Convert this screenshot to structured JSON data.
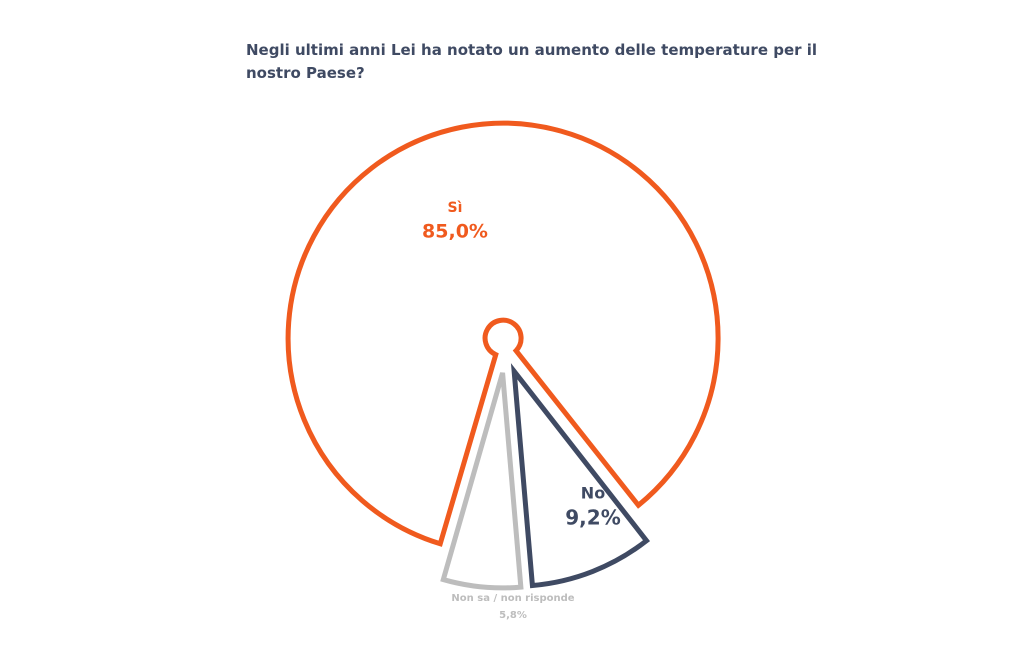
{
  "chart_data": {
    "type": "pie",
    "title": "Negli ultimi anni Lei ha notato un aumento delle temperature per il nostro Paese?",
    "categories": [
      "Sì",
      "No",
      "Non sa / non risponde"
    ],
    "values": [
      85.0,
      9.2,
      5.8
    ],
    "value_labels": [
      "85,0%",
      "9,2%",
      "5,8%"
    ],
    "colors": [
      "#f05a1e",
      "#3f4a63",
      "#bdbdbd"
    ]
  }
}
